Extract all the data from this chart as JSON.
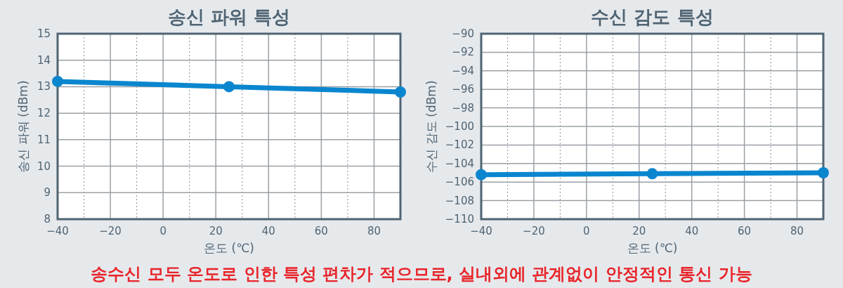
{
  "chart_data": [
    {
      "type": "line",
      "title": "송신 파워 특성",
      "xlabel": "온도 (℃)",
      "ylabel": "송신 파워 (dBm)",
      "x": [
        -40,
        25,
        90
      ],
      "series": [
        {
          "color": "#0a86cf",
          "values": [
            13.2,
            13.0,
            12.8
          ]
        }
      ],
      "xlim": [
        -40,
        90
      ],
      "xticks": [
        -40,
        {
          "value": -30,
          "label": null
        },
        -20,
        {
          "value": -10,
          "label": null
        },
        0,
        {
          "value": 10,
          "label": null
        },
        20,
        {
          "value": 30,
          "label": null
        },
        40,
        {
          "value": 50,
          "label": null
        },
        60,
        {
          "value": 70,
          "label": null
        },
        80
      ],
      "ylim": [
        8,
        15
      ],
      "yticks": [
        8,
        9,
        10,
        11,
        12,
        13,
        14,
        15
      ],
      "grid": true,
      "marker": "circle",
      "line_style": "solid"
    },
    {
      "type": "line",
      "title": "수신 감도 특성",
      "xlabel": "온도 (℃)",
      "ylabel": "수신 감도 (dBm)",
      "x": [
        -40,
        25,
        90
      ],
      "series": [
        {
          "color": "#0a86cf",
          "values": [
            -105.2,
            -105.1,
            -105.0
          ]
        }
      ],
      "xlim": [
        -40,
        90
      ],
      "xticks": [
        -40,
        {
          "value": -30,
          "label": null
        },
        -20,
        {
          "value": -10,
          "label": null
        },
        0,
        {
          "value": 10,
          "label": null
        },
        20,
        {
          "value": 30,
          "label": null
        },
        40,
        {
          "value": 50,
          "label": null
        },
        60,
        {
          "value": 70,
          "label": null
        },
        80
      ],
      "ylim": [
        -110,
        -90
      ],
      "yticks": [
        -110,
        -108,
        -106,
        -104,
        -102,
        -100,
        -98,
        -96,
        -94,
        -92,
        -90
      ],
      "grid": true,
      "marker": "circle",
      "line_style": "solid",
      "annotations": [
        "송수신 모두 온도로 인한 특성 편차가 적으므로, 실내외에 관계없이 안정적인 통신 가능"
      ]
    }
  ]
}
